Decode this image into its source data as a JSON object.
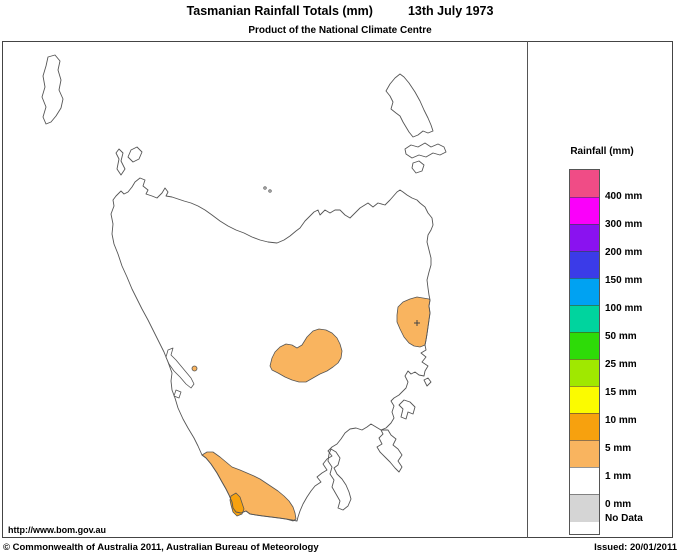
{
  "header": {
    "title_left": "Tasmanian Rainfall Totals (mm)",
    "title_right": "13th July 1973",
    "subtitle": "Product of the National Climate Centre"
  },
  "legend": {
    "title": "Rainfall (mm)",
    "items": [
      {
        "label": "400 mm",
        "color": "#F04C86"
      },
      {
        "label": "300 mm",
        "color": "#FA00FA"
      },
      {
        "label": "200 mm",
        "color": "#8A12F0"
      },
      {
        "label": "150 mm",
        "color": "#3B3BE8"
      },
      {
        "label": "100 mm",
        "color": "#00A2F2"
      },
      {
        "label": "50 mm",
        "color": "#00D49E"
      },
      {
        "label": "25 mm",
        "color": "#2EDB08"
      },
      {
        "label": "15 mm",
        "color": "#A0E800"
      },
      {
        "label": "10 mm",
        "color": "#FBFB00"
      },
      {
        "label": "5 mm",
        "color": "#F7A10E"
      },
      {
        "label": "1 mm",
        "color": "#F9B45F"
      },
      {
        "label": "0 mm",
        "color": "#FFFFFF"
      },
      {
        "label": "No Data",
        "color": "#D5D5D5",
        "center": true
      }
    ]
  },
  "map": {
    "region": "Tasmania",
    "shaded_regions": [
      {
        "name": "central-highlands-blob",
        "value": "1 mm"
      },
      {
        "name": "northeast-coastal-blob",
        "value": "1 mm"
      },
      {
        "name": "southwest-coastal-blob",
        "value": "1 mm"
      },
      {
        "name": "southwest-inner-patch",
        "value": "5 mm"
      },
      {
        "name": "small-central-west-dot",
        "value": "1 mm"
      }
    ],
    "colors": {
      "rain_1mm": "#F9B45F",
      "rain_5mm": "#F7A10E",
      "coastline": "#555555"
    }
  },
  "footer": {
    "url": "http://www.bom.gov.au",
    "copyright": "© Commonwealth of Australia 2011, Australian Bureau of Meteorology",
    "issued": "Issued: 20/01/2011"
  }
}
